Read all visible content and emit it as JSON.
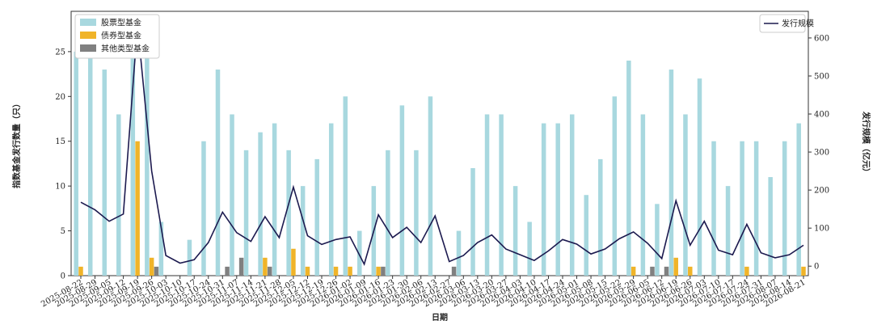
{
  "chart_data": {
    "type": "bar_line",
    "x_label": "日期",
    "y_label": "指数基金发行数量（只）",
    "y2_label": "发行规模（亿元）",
    "categories": [
      "2025-08-22",
      "2025-08-29",
      "2025-09-05",
      "2025-09-12",
      "2025-09-19",
      "2025-09-26",
      "2025-10-03",
      "2025-10-10",
      "2025-10-17",
      "2025-10-24",
      "2025-10-31",
      "2025-11-07",
      "2025-11-14",
      "2025-11-21",
      "2025-11-28",
      "2025-12-05",
      "2025-12-12",
      "2025-12-19",
      "2025-12-26",
      "2026-01-02",
      "2026-01-09",
      "2026-01-16",
      "2026-01-23",
      "2026-01-30",
      "2026-02-06",
      "2026-02-13",
      "2026-02-27",
      "2026-03-06",
      "2026-03-13",
      "2026-03-20",
      "2026-03-27",
      "2026-04-03",
      "2026-04-10",
      "2026-04-17",
      "2026-04-24",
      "2026-05-01",
      "2026-05-08",
      "2026-05-15",
      "2026-05-22",
      "2026-05-29",
      "2026-06-05",
      "2026-06-12",
      "2026-06-19",
      "2026-06-26",
      "2026-07-03",
      "2026-07-10",
      "2026-07-17",
      "2026-07-24",
      "2026-07-31",
      "2026-08-07",
      "2026-08-14",
      "2026-08-21"
    ],
    "series": [
      {
        "name": "股票型基金",
        "color": "#a8d8df",
        "values": [
          25,
          25,
          23,
          18,
          25,
          28,
          6,
          0,
          4,
          15,
          23,
          18,
          14,
          16,
          17,
          14,
          10,
          13,
          17,
          20,
          5,
          10,
          14,
          19,
          14,
          20,
          0,
          5,
          12,
          18,
          18,
          10,
          6,
          17,
          17,
          18,
          9,
          13,
          20,
          24,
          18,
          8,
          23,
          18,
          22,
          15,
          10,
          15,
          15,
          11,
          15,
          17
        ]
      },
      {
        "name": "债券型基金",
        "color": "#f0b429",
        "values": [
          1,
          0,
          0,
          0,
          15,
          2,
          0,
          0,
          0,
          0,
          0,
          0,
          0,
          2,
          0,
          3,
          1,
          0,
          1,
          1,
          0,
          1,
          0,
          0,
          0,
          0,
          0,
          0,
          0,
          0,
          0,
          0,
          0,
          0,
          0,
          0,
          0,
          0,
          0,
          1,
          0,
          0,
          2,
          1,
          0,
          0,
          0,
          1,
          0,
          0,
          0,
          1
        ]
      },
      {
        "name": "其他类型基金",
        "color": "#808080",
        "values": [
          0,
          0,
          0,
          0,
          0,
          1,
          0,
          0,
          0,
          0,
          1,
          2,
          0,
          1,
          0,
          0,
          0,
          0,
          0,
          0,
          0,
          1,
          0,
          0,
          0,
          0,
          1,
          0,
          0,
          0,
          0,
          0,
          0,
          0,
          0,
          0,
          0,
          0,
          0,
          0,
          1,
          1,
          0,
          0,
          0,
          0,
          0,
          0,
          0,
          0,
          0,
          0
        ]
      },
      {
        "name": "发行规模",
        "color": "#1c1a4f",
        "axis": "y2",
        "type": "line",
        "values": [
          168,
          148,
          118,
          137,
          635,
          250,
          28,
          8,
          17,
          62,
          142,
          88,
          65,
          130,
          75,
          208,
          80,
          57,
          70,
          77,
          5,
          135,
          75,
          102,
          62,
          132,
          12,
          28,
          62,
          82,
          45,
          30,
          15,
          40,
          70,
          58,
          32,
          45,
          72,
          90,
          60,
          20,
          172,
          55,
          118,
          42,
          30,
          110,
          35,
          22,
          30,
          55
        ]
      }
    ],
    "ylim": [
      0,
      29.5
    ],
    "yticks": [
      0,
      5,
      10,
      15,
      20,
      25
    ],
    "y2lim": [
      -25,
      670
    ],
    "y2ticks": [
      0,
      100,
      200,
      300,
      400,
      500,
      600
    ]
  }
}
